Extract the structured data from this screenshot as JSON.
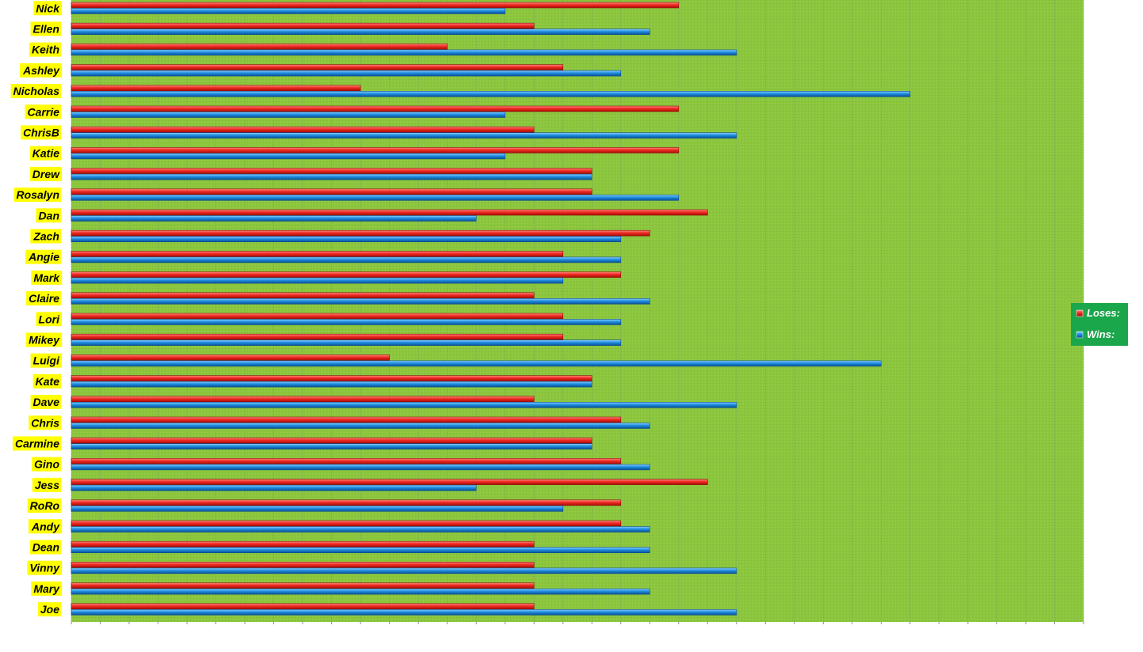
{
  "colors": {
    "plot_background": "#8cc63e",
    "gridline": "#7a9a6a",
    "label_highlight": "#ffff00",
    "loses": "#e8221b",
    "wins": "#1a86d6",
    "legend_background": "#1aa64a"
  },
  "chart_data": {
    "type": "bar",
    "orientation": "horizontal",
    "title": "",
    "xlabel": "",
    "ylabel": "",
    "xlim": [
      0,
      35
    ],
    "grid": true,
    "legend_position": "right",
    "categories": [
      "Nick",
      "Ellen",
      "Keith",
      "Ashley",
      "Nicholas",
      "Carrie",
      "ChrisB",
      "Katie",
      "Drew",
      "Rosalyn",
      "Dan",
      "Zach",
      "Angie",
      "Mark",
      "Claire",
      "Lori",
      "Mikey",
      "Luigi",
      "Kate",
      "Dave",
      "Chris",
      "Carmine",
      "Gino",
      "Jess",
      "RoRo",
      "Andy",
      "Dean",
      "Vinny",
      "Mary",
      "Joe"
    ],
    "series": [
      {
        "name": "Loses:",
        "values": [
          21,
          16,
          13,
          17,
          10,
          21,
          16,
          21,
          18,
          18,
          22,
          20,
          17,
          19,
          16,
          17,
          17,
          11,
          18,
          16,
          19,
          18,
          19,
          22,
          19,
          19,
          16,
          16,
          16,
          16
        ]
      },
      {
        "name": "Wins:",
        "values": [
          15,
          20,
          23,
          19,
          29,
          15,
          23,
          15,
          18,
          21,
          14,
          19,
          19,
          17,
          20,
          19,
          19,
          28,
          18,
          23,
          20,
          18,
          20,
          14,
          17,
          20,
          20,
          23,
          20,
          23
        ]
      }
    ]
  }
}
